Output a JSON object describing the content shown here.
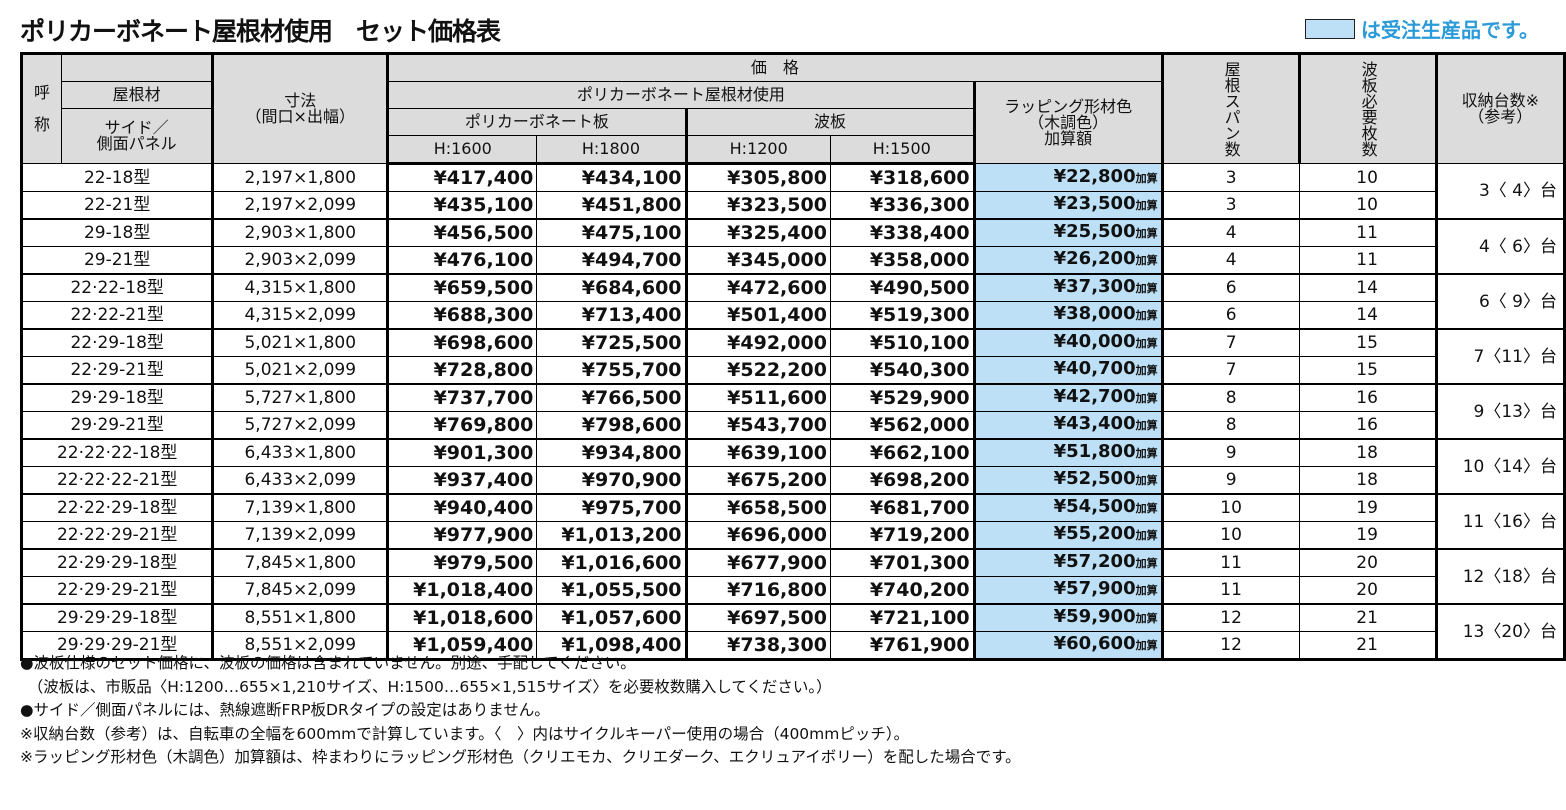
{
  "title": "ポリカーボネート屋根材使用　セット価格表",
  "legend_text": "は受注生産品です。",
  "colors": {
    "made_to_order": "#bde0f6",
    "legend_text": "#2b9ad8",
    "header_bg": "#dcdcdc"
  },
  "header": {
    "name1": "呼",
    "name2": "称",
    "roof": "屋根材",
    "side": "サイド／\n側面パネル",
    "size": "寸法\n（間口×出幅）",
    "price": "価　格",
    "poly_roof": "ポリカーボネート屋根材使用",
    "poly_board": "ポリカーボネート板",
    "wave": "波板",
    "h1600": "H:1600",
    "h1800": "H:1800",
    "h1200": "H:1200",
    "h1500": "H:1500",
    "wrap": "ラッピング形材色\n（木調色）\n加算額",
    "span": "屋根スパン数",
    "sheets": "波板必要枚数",
    "storage": "収納台数※\n（参考）"
  },
  "wrap_suffix": "加算",
  "rows": [
    [
      "22-18型",
      "2,197×1,800",
      "¥417,400",
      "¥434,100",
      "¥305,800",
      "¥318,600",
      "¥22,800",
      "3",
      "10"
    ],
    [
      "22-21型",
      "2,197×2,099",
      "¥435,100",
      "¥451,800",
      "¥323,500",
      "¥336,300",
      "¥23,500",
      "3",
      "10"
    ],
    [
      "29-18型",
      "2,903×1,800",
      "¥456,500",
      "¥475,100",
      "¥325,400",
      "¥338,400",
      "¥25,500",
      "4",
      "11"
    ],
    [
      "29-21型",
      "2,903×2,099",
      "¥476,100",
      "¥494,700",
      "¥345,000",
      "¥358,000",
      "¥26,200",
      "4",
      "11"
    ],
    [
      "22·22-18型",
      "4,315×1,800",
      "¥659,500",
      "¥684,600",
      "¥472,600",
      "¥490,500",
      "¥37,300",
      "6",
      "14"
    ],
    [
      "22·22-21型",
      "4,315×2,099",
      "¥688,300",
      "¥713,400",
      "¥501,400",
      "¥519,300",
      "¥38,000",
      "6",
      "14"
    ],
    [
      "22·29-18型",
      "5,021×1,800",
      "¥698,600",
      "¥725,500",
      "¥492,000",
      "¥510,100",
      "¥40,000",
      "7",
      "15"
    ],
    [
      "22·29-21型",
      "5,021×2,099",
      "¥728,800",
      "¥755,700",
      "¥522,200",
      "¥540,300",
      "¥40,700",
      "7",
      "15"
    ],
    [
      "29·29-18型",
      "5,727×1,800",
      "¥737,700",
      "¥766,500",
      "¥511,600",
      "¥529,900",
      "¥42,700",
      "8",
      "16"
    ],
    [
      "29·29-21型",
      "5,727×2,099",
      "¥769,800",
      "¥798,600",
      "¥543,700",
      "¥562,000",
      "¥43,400",
      "8",
      "16"
    ],
    [
      "22·22·22-18型",
      "6,433×1,800",
      "¥901,300",
      "¥934,800",
      "¥639,100",
      "¥662,100",
      "¥51,800",
      "9",
      "18"
    ],
    [
      "22·22·22-21型",
      "6,433×2,099",
      "¥937,400",
      "¥970,900",
      "¥675,200",
      "¥698,200",
      "¥52,500",
      "9",
      "18"
    ],
    [
      "22·22·29-18型",
      "7,139×1,800",
      "¥940,400",
      "¥975,700",
      "¥658,500",
      "¥681,700",
      "¥54,500",
      "10",
      "19"
    ],
    [
      "22·22·29-21型",
      "7,139×2,099",
      "¥977,900",
      "¥1,013,200",
      "¥696,000",
      "¥719,200",
      "¥55,200",
      "10",
      "19"
    ],
    [
      "22·29·29-18型",
      "7,845×1,800",
      "¥979,500",
      "¥1,016,600",
      "¥677,900",
      "¥701,300",
      "¥57,200",
      "11",
      "20"
    ],
    [
      "22·29·29-21型",
      "7,845×2,099",
      "¥1,018,400",
      "¥1,055,500",
      "¥716,800",
      "¥740,200",
      "¥57,900",
      "11",
      "20"
    ],
    [
      "29·29·29-18型",
      "8,551×1,800",
      "¥1,018,600",
      "¥1,057,600",
      "¥697,500",
      "¥721,100",
      "¥59,900",
      "12",
      "21"
    ],
    [
      "29·29·29-21型",
      "8,551×2,099",
      "¥1,059,400",
      "¥1,098,400",
      "¥738,300",
      "¥761,900",
      "¥60,600",
      "12",
      "21"
    ]
  ],
  "storage": [
    "3〈 4〉台",
    "4〈 6〉台",
    "6〈 9〉台",
    "7〈11〉台",
    "9〈13〉台",
    "10〈14〉台",
    "11〈16〉台",
    "12〈18〉台",
    "13〈20〉台"
  ],
  "notes": [
    "●波板仕様のセット価格に、波板の価格は含まれていません。別途、手配してください。",
    "　（波板は、市販品〈H:1200…655×1,210サイズ、H:1500…655×1,515サイズ〉を必要枚数購入してください。）",
    "●サイド／側面パネルには、熱線遮断FRP板DRタイプの設定はありません。",
    "※収納台数（参考）は、自転車の全幅を600mmで計算しています。〈　〉内はサイクルキーパー使用の場合（400mmピッチ）。",
    "※ラッピング形材色（木調色）加算額は、枠まわりにラッピング形材色（クリエモカ、クリエダーク、エクリュアイボリー）を配した場合です。"
  ]
}
